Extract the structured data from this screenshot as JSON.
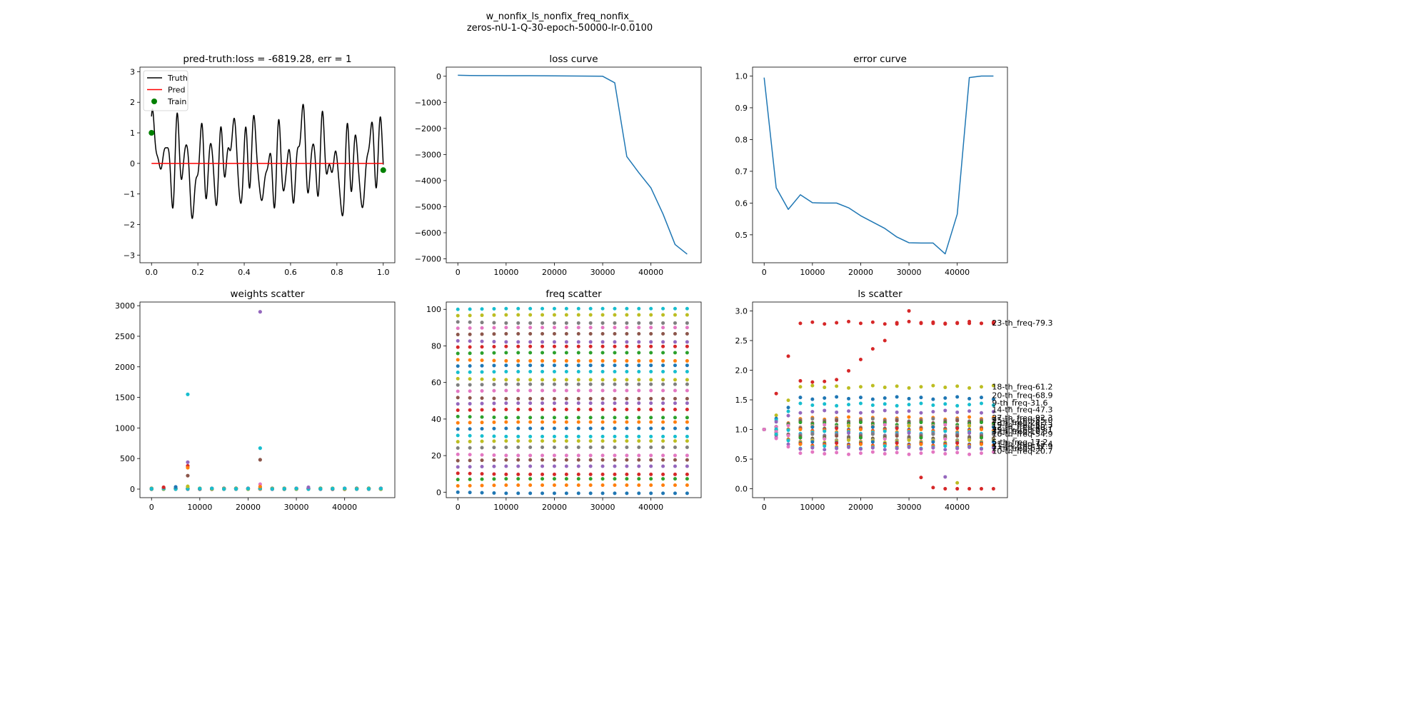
{
  "figure": {
    "title_line1": "w_nonfix_ls_nonfix_freq_nonfix_",
    "title_line2": "zeros-nU-1-Q-30-epoch-50000-lr-0.0100"
  },
  "colors": {
    "tab10": [
      "#1f77b4",
      "#ff7f0e",
      "#2ca02c",
      "#d62728",
      "#9467bd",
      "#8c564b",
      "#e377c2",
      "#7f7f7f",
      "#bcbd22",
      "#17becf"
    ],
    "truth": "#000000",
    "pred": "#ff0000",
    "train": "#008000",
    "line": "#1f77b4"
  },
  "chart_data": [
    {
      "id": "pred-truth",
      "type": "line",
      "title": "pred-truth:loss = -6819.28, err = 1",
      "xlim": [
        -0.05,
        1.05
      ],
      "ylim": [
        -3.25,
        3.15
      ],
      "xticks": [
        0.0,
        0.2,
        0.4,
        0.6,
        0.8,
        1.0
      ],
      "xtick_labels": [
        "0.0",
        "0.2",
        "0.4",
        "0.6",
        "0.8",
        "1.0"
      ],
      "yticks": [
        -3,
        -2,
        -1,
        0,
        1,
        2,
        3
      ],
      "ytick_labels": [
        "−3",
        "−2",
        "−1",
        "0",
        "1",
        "2",
        "3"
      ],
      "legend": {
        "placement": "upper-left",
        "entries": [
          "Truth",
          "Pred",
          "Train"
        ]
      },
      "truth_components": [
        {
          "amp": 0.75,
          "freq": 20.5,
          "phase": 0.0
        },
        {
          "amp": 0.55,
          "freq": 27.3,
          "phase": 1.3
        },
        {
          "amp": 0.5,
          "freq": 9.5,
          "phase": 0.5
        },
        {
          "amp": 0.35,
          "freq": 13.7,
          "phase": 2.2
        },
        {
          "amp": 0.3,
          "freq": 3.1,
          "phase": 0.9
        },
        {
          "amp": 0.25,
          "freq": 36.6,
          "phase": 1.7
        }
      ],
      "pred": {
        "x": [
          0.0,
          1.0
        ],
        "y": [
          0.0,
          0.0
        ]
      },
      "train": {
        "x": [
          0.0,
          1.0
        ],
        "y": [
          1.0,
          -0.22
        ]
      }
    },
    {
      "id": "loss-curve",
      "type": "line",
      "title": "loss curve",
      "xlim": [
        -2400,
        50400
      ],
      "ylim": [
        -7150,
        350
      ],
      "xticks": [
        0,
        10000,
        20000,
        30000,
        40000
      ],
      "xtick_labels": [
        "0",
        "10000",
        "20000",
        "30000",
        "40000"
      ],
      "yticks": [
        0,
        -1000,
        -2000,
        -3000,
        -4000,
        -5000,
        -6000,
        -7000
      ],
      "ytick_labels": [
        "0",
        "−1000",
        "−2000",
        "−3000",
        "−4000",
        "−5000",
        "−6000",
        "−7000"
      ],
      "x": [
        0,
        2500,
        5000,
        7500,
        10000,
        12500,
        15000,
        17500,
        20000,
        22500,
        25000,
        27500,
        30000,
        32500,
        35000,
        37500,
        40000,
        42500,
        45000,
        47500
      ],
      "y": [
        40,
        30,
        25,
        25,
        20,
        20,
        20,
        18,
        15,
        10,
        8,
        5,
        0,
        -250,
        -3080,
        -3700,
        -4280,
        -5280,
        -6450,
        -6819
      ]
    },
    {
      "id": "error-curve",
      "type": "line",
      "title": "error curve",
      "xlim": [
        -2400,
        50400
      ],
      "ylim": [
        0.412,
        1.028
      ],
      "xticks": [
        0,
        10000,
        20000,
        30000,
        40000
      ],
      "xtick_labels": [
        "0",
        "10000",
        "20000",
        "30000",
        "40000"
      ],
      "yticks": [
        0.5,
        0.6,
        0.7,
        0.8,
        0.9,
        1.0
      ],
      "ytick_labels": [
        "0.5",
        "0.6",
        "0.7",
        "0.8",
        "0.9",
        "1.0"
      ],
      "x": [
        0,
        2500,
        5000,
        7500,
        10000,
        12500,
        15000,
        17500,
        20000,
        22500,
        25000,
        27500,
        30000,
        32500,
        35000,
        37500,
        40000,
        42500,
        45000,
        47500
      ],
      "y": [
        0.995,
        0.648,
        0.58,
        0.626,
        0.601,
        0.6,
        0.6,
        0.585,
        0.56,
        0.54,
        0.52,
        0.493,
        0.475,
        0.474,
        0.474,
        0.44,
        0.565,
        0.995,
        1.0,
        1.0
      ]
    },
    {
      "id": "weights-scatter",
      "type": "scatter",
      "title": "weights scatter",
      "xlim": [
        -2400,
        50400
      ],
      "ylim": [
        -140,
        3060
      ],
      "xticks": [
        0,
        10000,
        20000,
        30000,
        40000
      ],
      "xtick_labels": [
        "0",
        "10000",
        "20000",
        "30000",
        "40000"
      ],
      "yticks": [
        0,
        500,
        1000,
        1500,
        2000,
        2500,
        3000
      ],
      "ytick_labels": [
        "0",
        "500",
        "1000",
        "1500",
        "2000",
        "2500",
        "3000"
      ],
      "x": [
        0,
        2500,
        5000,
        7500,
        10000,
        12500,
        15000,
        17500,
        20000,
        22500,
        25000,
        27500,
        30000,
        32500,
        35000,
        37500,
        40000,
        42500,
        45000,
        47500
      ],
      "n_series": 30,
      "outliers": [
        {
          "x": 22500,
          "y": 2900,
          "c": 4
        },
        {
          "x": 7500,
          "y": 1550,
          "c": 9
        },
        {
          "x": 22500,
          "y": 670,
          "c": 9
        },
        {
          "x": 22500,
          "y": 480,
          "c": 5
        },
        {
          "x": 7500,
          "y": 440,
          "c": 4
        },
        {
          "x": 7500,
          "y": 380,
          "c": 3
        },
        {
          "x": 7500,
          "y": 350,
          "c": 1
        },
        {
          "x": 7500,
          "y": 220,
          "c": 5
        },
        {
          "x": 22500,
          "y": 80,
          "c": 6
        },
        {
          "x": 2500,
          "y": 30,
          "c": 3
        },
        {
          "x": 5000,
          "y": 35,
          "c": 0
        },
        {
          "x": 32500,
          "y": 30,
          "c": 4
        },
        {
          "x": 7500,
          "y": 45,
          "c": 8
        },
        {
          "x": 22500,
          "y": 40,
          "c": 1
        }
      ]
    },
    {
      "id": "freq-scatter",
      "type": "scatter",
      "title": "freq scatter",
      "xlim": [
        -2400,
        50400
      ],
      "ylim": [
        -3,
        104
      ],
      "xticks": [
        0,
        10000,
        20000,
        30000,
        40000
      ],
      "xtick_labels": [
        "0",
        "10000",
        "20000",
        "30000",
        "40000"
      ],
      "yticks": [
        0,
        20,
        40,
        60,
        80,
        100
      ],
      "ytick_labels": [
        "0",
        "20",
        "40",
        "60",
        "80",
        "100"
      ],
      "x": [
        0,
        2500,
        5000,
        7500,
        10000,
        12500,
        15000,
        17500,
        20000,
        22500,
        25000,
        27500,
        30000,
        32500,
        35000,
        37500,
        40000,
        42500,
        45000,
        47500
      ],
      "n_series": 30,
      "freq_min": 0,
      "freq_max": 100
    },
    {
      "id": "ls-scatter",
      "type": "scatter",
      "title": "ls scatter",
      "xlim": [
        -2400,
        50400
      ],
      "ylim": [
        -0.15,
        3.15
      ],
      "xticks": [
        0,
        10000,
        20000,
        30000,
        40000
      ],
      "xtick_labels": [
        "0",
        "10000",
        "20000",
        "30000",
        "40000"
      ],
      "yticks": [
        0.0,
        0.5,
        1.0,
        1.5,
        2.0,
        2.5,
        3.0
      ],
      "ytick_labels": [
        "0.0",
        "0.5",
        "1.0",
        "1.5",
        "2.0",
        "2.5",
        "3.0"
      ],
      "x": [
        0,
        2500,
        5000,
        7500,
        10000,
        12500,
        15000,
        17500,
        20000,
        22500,
        25000,
        27500,
        30000,
        32500,
        35000,
        37500,
        40000,
        42500,
        45000,
        47500
      ],
      "series_final": [
        {
          "c": 3,
          "v": 2.8
        },
        {
          "c": 8,
          "v": 1.72
        },
        {
          "c": 0,
          "v": 1.53
        },
        {
          "c": 9,
          "v": 1.42
        },
        {
          "c": 4,
          "v": 1.3
        },
        {
          "c": 1,
          "v": 1.19
        },
        {
          "c": 7,
          "v": 1.16
        },
        {
          "c": 5,
          "v": 1.13
        },
        {
          "c": 2,
          "v": 1.1
        },
        {
          "c": 6,
          "v": 1.06
        },
        {
          "c": 8,
          "v": 1.04
        },
        {
          "c": 0,
          "v": 1.02
        },
        {
          "c": 3,
          "v": 1.0
        },
        {
          "c": 1,
          "v": 0.98
        },
        {
          "c": 9,
          "v": 0.95
        },
        {
          "c": 4,
          "v": 0.92
        },
        {
          "c": 7,
          "v": 0.9
        },
        {
          "c": 5,
          "v": 0.87
        },
        {
          "c": 2,
          "v": 0.84
        },
        {
          "c": 6,
          "v": 0.82
        },
        {
          "c": 8,
          "v": 0.8
        },
        {
          "c": 0,
          "v": 0.77
        },
        {
          "c": 3,
          "v": 0.75
        },
        {
          "c": 1,
          "v": 0.73
        },
        {
          "c": 9,
          "v": 0.7
        },
        {
          "c": 4,
          "v": 0.68
        },
        {
          "c": 6,
          "v": 0.6
        }
      ],
      "collapse_series": [
        {
          "x": [
            32500,
            35000,
            37500,
            40000,
            42500,
            45000,
            47500
          ],
          "y": [
            0.19,
            0.02,
            0.0,
            0.0,
            0.0,
            0.0,
            0.0
          ],
          "c": 3
        },
        {
          "x": [
            37500
          ],
          "y": [
            0.2
          ],
          "c": 4
        },
        {
          "x": [
            40000
          ],
          "y": [
            0.1
          ],
          "c": 8
        }
      ],
      "rise_series": {
        "x": [
          7500,
          10000,
          12500,
          15000,
          17500,
          20000,
          22500,
          25000,
          27500,
          30000,
          32500,
          35000,
          37500,
          40000,
          42500,
          45000,
          47500
        ],
        "y": [
          1.82,
          1.8,
          1.81,
          1.84,
          1.99,
          2.18,
          2.36,
          2.5,
          2.78,
          3.0,
          2.8,
          2.79,
          2.79,
          2.79,
          2.79,
          2.79,
          2.79
        ],
        "c": 3
      },
      "labels": [
        {
          "text": "23-th_freq-79.3",
          "v": 2.8
        },
        {
          "text": "18-th_freq-61.2",
          "v": 1.72
        },
        {
          "text": "20-th_freq-68.9",
          "v": 1.58
        },
        {
          "text": "9-th_freq-31.6",
          "v": 1.45
        },
        {
          "text": "14-th_freq-47.3",
          "v": 1.34
        },
        {
          "text": "27-th_freq-92.3",
          "v": 1.2
        },
        {
          "text": "25-th_freq-85.0",
          "v": 1.16
        },
        {
          "text": "7-th_freq-24.1",
          "v": 1.12
        },
        {
          "text": "19-th_freq-65.3",
          "v": 1.08
        },
        {
          "text": "12-th_freq-40.7",
          "v": 1.04
        },
        {
          "text": "29-th_freq-99.1",
          "v": 1.0
        },
        {
          "text": "3-th_freq-10.3",
          "v": 0.97
        },
        {
          "text": "16-th_freq-54.9",
          "v": 0.93
        },
        {
          "text": "5-th_freq-17.2",
          "v": 0.79
        },
        {
          "text": "21-th_freq-72.4",
          "v": 0.76
        },
        {
          "text": "11-th_freq-37.9",
          "v": 0.72
        },
        {
          "text": "2-th_freq-6.9",
          "v": 0.69
        },
        {
          "text": "10-th_freq-20.7",
          "v": 0.64
        }
      ]
    }
  ]
}
